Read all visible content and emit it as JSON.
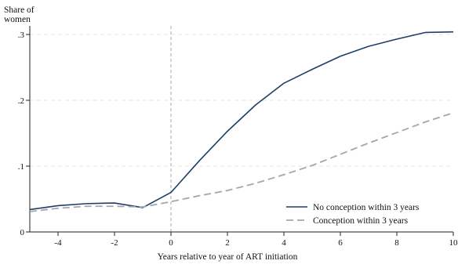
{
  "chart_data": {
    "type": "line",
    "title": "",
    "ylabel_lines": [
      "Share of",
      "women"
    ],
    "xlabel": "Years relative to year of ART initiation",
    "xlim": [
      -5,
      10
    ],
    "ylim": [
      0,
      0.3
    ],
    "x_ticks": [
      -4,
      -2,
      0,
      2,
      4,
      6,
      8,
      10
    ],
    "x_tick_labels": [
      "-4",
      "-2",
      "0",
      "2",
      "4",
      "6",
      "8",
      "10"
    ],
    "y_ticks": [
      0,
      0.1,
      0.2,
      0.3
    ],
    "y_tick_labels": [
      "0",
      ".1",
      ".2",
      ".3"
    ],
    "grid": "horizontal dashed",
    "reference_line_x": 0,
    "legend_position": "bottom-right",
    "x": [
      -5,
      -4,
      -3,
      -2,
      -1,
      0,
      1,
      2,
      3,
      4,
      5,
      6,
      7,
      8,
      9,
      10
    ],
    "series": [
      {
        "name": "No conception within 3 years",
        "color": "#1f3f66",
        "style": "solid",
        "values": [
          0.034,
          0.04,
          0.043,
          0.044,
          0.037,
          0.06,
          0.108,
          0.153,
          0.193,
          0.226,
          0.247,
          0.267,
          0.282,
          0.293,
          0.303,
          0.304
        ]
      },
      {
        "name": "Conception within 3 years",
        "color": "#a3a6ad",
        "style": "dashed",
        "values": [
          0.031,
          0.036,
          0.039,
          0.039,
          0.038,
          0.046,
          0.055,
          0.063,
          0.074,
          0.087,
          0.101,
          0.118,
          0.135,
          0.151,
          0.167,
          0.181
        ]
      }
    ]
  }
}
